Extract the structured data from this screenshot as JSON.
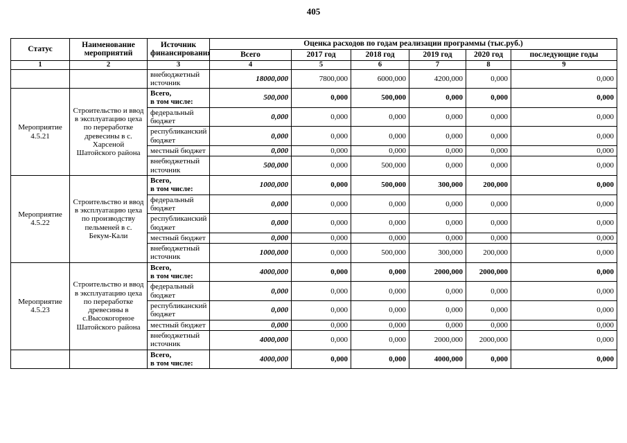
{
  "page": {
    "number": "405"
  },
  "table": {
    "header": {
      "status": "Статус",
      "name": "Наименование мероприятий",
      "source": "Источник финансирования",
      "group": "Оценка расходов по годам реализации  программы (тыс.руб.)",
      "years": [
        "Всего",
        "2017 год",
        "2018 год",
        "2019 год",
        "2020 год",
        "последующие годы"
      ],
      "column_numbers": [
        "1",
        "2",
        "3",
        "4",
        "5",
        "6",
        "7",
        "8",
        "9"
      ]
    },
    "sections": [
      {
        "status": "",
        "name": "",
        "rows": [
          {
            "type": "regular",
            "source": "внебюджетный источник",
            "values": [
              "18000,000",
              "7800,000",
              "6000,000",
              "4200,000",
              "0,000",
              "0,000"
            ]
          }
        ]
      },
      {
        "status": "Мероприятие 4.5.21",
        "name": "Строительство и ввод в эксплуатацию цеха по переработке древесины  в с. Харсеной Шатойского района",
        "rows": [
          {
            "type": "total",
            "source": "Всего,\nв том числе:",
            "values": [
              "500,000",
              "0,000",
              "500,000",
              "0,000",
              "0,000",
              "0,000"
            ]
          },
          {
            "type": "regular",
            "source": "федеральный бюджет",
            "values": [
              "0,000",
              "0,000",
              "0,000",
              "0,000",
              "0,000",
              "0,000"
            ]
          },
          {
            "type": "regular",
            "source": "республиканский бюджет",
            "values": [
              "0,000",
              "0,000",
              "0,000",
              "0,000",
              "0,000",
              "0,000"
            ]
          },
          {
            "type": "regular",
            "source": "местный бюджет",
            "values": [
              "0,000",
              "0,000",
              "0,000",
              "0,000",
              "0,000",
              "0,000"
            ]
          },
          {
            "type": "regular",
            "source": "внебюджетный источник",
            "values": [
              "500,000",
              "0,000",
              "500,000",
              "0,000",
              "0,000",
              "0,000"
            ]
          }
        ]
      },
      {
        "status": "Мероприятие 4.5.22",
        "name": "Строительство и ввод в эксплуатацию цеха по производству пельменей в  с. Бекум-Кали",
        "rows": [
          {
            "type": "total",
            "source": "Всего,\nв том числе:",
            "values": [
              "1000,000",
              "0,000",
              "500,000",
              "300,000",
              "200,000",
              "0,000"
            ]
          },
          {
            "type": "regular",
            "source": "федеральный бюджет",
            "values": [
              "0,000",
              "0,000",
              "0,000",
              "0,000",
              "0,000",
              "0,000"
            ]
          },
          {
            "type": "regular",
            "source": "республиканский бюджет",
            "values": [
              "0,000",
              "0,000",
              "0,000",
              "0,000",
              "0,000",
              "0,000"
            ]
          },
          {
            "type": "regular",
            "source": "местный бюджет",
            "values": [
              "0,000",
              "0,000",
              "0,000",
              "0,000",
              "0,000",
              "0,000"
            ]
          },
          {
            "type": "regular",
            "source": "внебюджетный источник",
            "values": [
              "1000,000",
              "0,000",
              "500,000",
              "300,000",
              "200,000",
              "0,000"
            ]
          }
        ]
      },
      {
        "status": "Мероприятие 4.5.23",
        "name": "Строительство и ввод в эксплуатацию цеха по переработке древесины в с.Высокогорное Шатойского района",
        "rows": [
          {
            "type": "total",
            "source": "Всего,\nв том числе:",
            "values": [
              "4000,000",
              "0,000",
              "0,000",
              "2000,000",
              "2000,000",
              "0,000"
            ]
          },
          {
            "type": "regular",
            "source": "федеральный бюджет",
            "values": [
              "0,000",
              "0,000",
              "0,000",
              "0,000",
              "0,000",
              "0,000"
            ]
          },
          {
            "type": "regular",
            "source": "республиканский бюджет",
            "values": [
              "0,000",
              "0,000",
              "0,000",
              "0,000",
              "0,000",
              "0,000"
            ]
          },
          {
            "type": "regular",
            "source": "местный бюджет",
            "values": [
              "0,000",
              "0,000",
              "0,000",
              "0,000",
              "0,000",
              "0,000"
            ]
          },
          {
            "type": "regular",
            "source": "внебюджетный источник",
            "values": [
              "4000,000",
              "0,000",
              "0,000",
              "2000,000",
              "2000,000",
              "0,000"
            ]
          }
        ]
      },
      {
        "status": "",
        "name": "",
        "rows": [
          {
            "type": "total",
            "source": "Всего,\nв том числе:",
            "values": [
              "4000,000",
              "0,000",
              "0,000",
              "4000,000",
              "0,000",
              "0,000"
            ]
          }
        ]
      }
    ]
  }
}
